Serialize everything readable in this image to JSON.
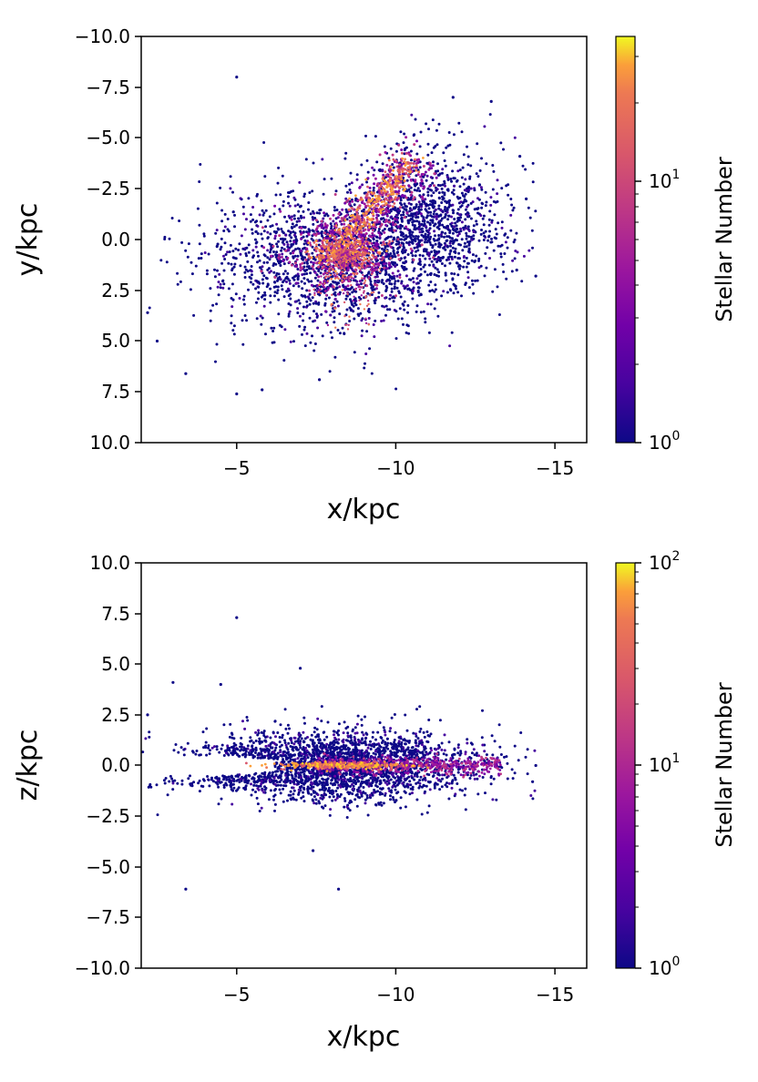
{
  "chart_data": [
    {
      "type": "scatter",
      "subtype": "2d-density-histogram",
      "title": "",
      "xlabel": "x/kpc",
      "ylabel": "y/kpc",
      "xlim": [
        -2,
        -16
      ],
      "ylim": [
        10,
        -10
      ],
      "xticks": [
        -5,
        -10,
        -15
      ],
      "xtick_labels": [
        "−5",
        "−10",
        "−15"
      ],
      "yticks": [
        -10,
        -7.5,
        -5,
        -2.5,
        0,
        2.5,
        5,
        7.5,
        10
      ],
      "ytick_labels": [
        "−10.0",
        "−7.5",
        "−5.0",
        "−2.5",
        "0.0",
        "2.5",
        "5.0",
        "7.5",
        "10.0"
      ],
      "colormap": "plasma",
      "colorbar": {
        "label": "Stellar Number",
        "scale": "log",
        "range": [
          1,
          40
        ],
        "ticks": [
          {
            "value": 1,
            "base": "10",
            "exp": "0"
          },
          {
            "value": 10,
            "base": "10",
            "exp": "1"
          }
        ]
      },
      "outliers": [
        [
          -5,
          -8
        ],
        [
          -11.8,
          -7
        ],
        [
          -13.0,
          -6.8
        ],
        [
          -13.9,
          -4.1
        ],
        [
          -14.1,
          -2.0
        ],
        [
          -14.4,
          1.8
        ],
        [
          -2.5,
          5.0
        ],
        [
          -3.4,
          6.6
        ],
        [
          -5.0,
          7.6
        ],
        [
          -5.8,
          7.4
        ],
        [
          -7.6,
          6.9
        ],
        [
          -13.8,
          1.5
        ],
        [
          -2.2,
          3.6
        ]
      ]
    },
    {
      "type": "scatter",
      "subtype": "2d-density-histogram",
      "title": "",
      "xlabel": "x/kpc",
      "ylabel": "z/kpc",
      "xlim": [
        -2,
        -16
      ],
      "ylim": [
        -10,
        10
      ],
      "xticks": [
        -5,
        -10,
        -15
      ],
      "xtick_labels": [
        "−5",
        "−10",
        "−15"
      ],
      "yticks": [
        -10,
        -7.5,
        -5,
        -2.5,
        0,
        2.5,
        5,
        7.5,
        10
      ],
      "ytick_labels": [
        "−10.0",
        "−7.5",
        "−5.0",
        "−2.5",
        "0.0",
        "2.5",
        "5.0",
        "7.5",
        "10.0"
      ],
      "colormap": "plasma",
      "colorbar": {
        "label": "Stellar Number",
        "scale": "log",
        "range": [
          1,
          100
        ],
        "ticks": [
          {
            "value": 1,
            "base": "10",
            "exp": "0"
          },
          {
            "value": 10,
            "base": "10",
            "exp": "1"
          },
          {
            "value": 100,
            "base": "10",
            "exp": "2"
          }
        ]
      },
      "outliers": [
        [
          -5,
          7.3
        ],
        [
          -3.4,
          -6.1
        ],
        [
          -8.2,
          -6.1
        ],
        [
          -3.0,
          4.1
        ],
        [
          -4.5,
          4.0
        ],
        [
          -7.0,
          4.8
        ],
        [
          -7.4,
          -4.2
        ],
        [
          -2.2,
          2.5
        ],
        [
          -14.3,
          -0.8
        ],
        [
          -14.4,
          0.0
        ]
      ]
    }
  ]
}
